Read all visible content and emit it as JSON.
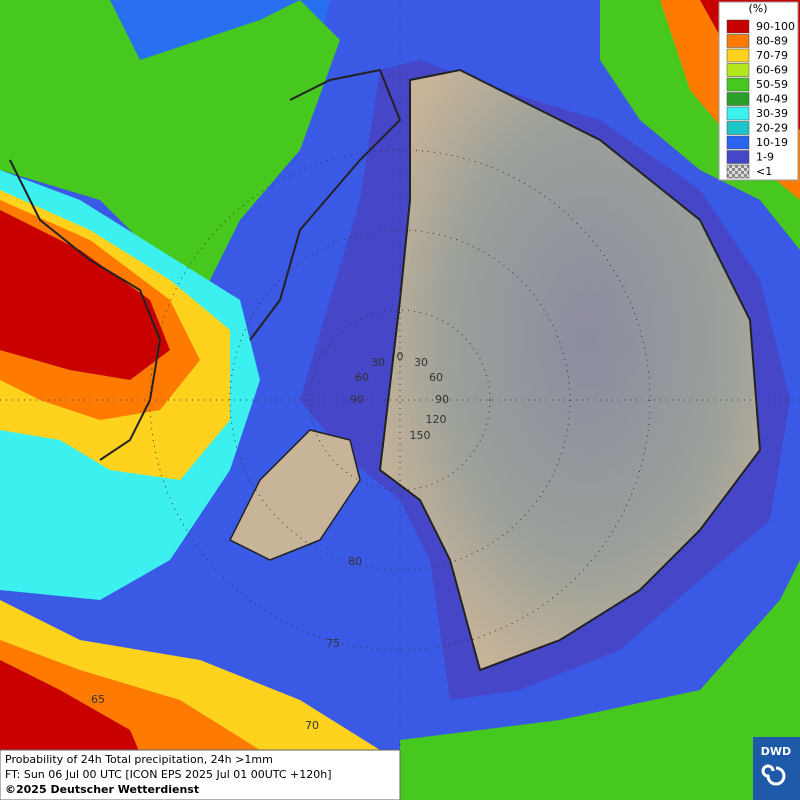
{
  "legend": {
    "title": "(%)",
    "items": [
      {
        "label": "90-100",
        "color": "#c80000"
      },
      {
        "label": "80-89",
        "color": "#ff7a00"
      },
      {
        "label": "70-79",
        "color": "#ffd21e"
      },
      {
        "label": "60-69",
        "color": "#b4e61e"
      },
      {
        "label": "50-59",
        "color": "#46c81e"
      },
      {
        "label": "40-49",
        "color": "#28a028"
      },
      {
        "label": "30-39",
        "color": "#3cf0f0"
      },
      {
        "label": "20-29",
        "color": "#1ec8c8"
      },
      {
        "label": "10-19",
        "color": "#2864f0"
      },
      {
        "label": "1-9",
        "color": "#4646c8"
      },
      {
        "label": "<1",
        "color": "#b4b4b4"
      }
    ]
  },
  "graticule_labels": [
    "30",
    "0",
    "30",
    "60",
    "60",
    "90",
    "90",
    "120",
    "150",
    "80",
    "75",
    "70",
    "65"
  ],
  "footer": {
    "lines": [
      "Probability of 24h Total precipitation, 24h >1mm",
      "FT: Sun 06 Jul 00 UTC [ICON EPS 2025 Jul 01 00UTC +120h]",
      "©2025 Deutscher Wetterdienst"
    ]
  },
  "logo": "DWD"
}
